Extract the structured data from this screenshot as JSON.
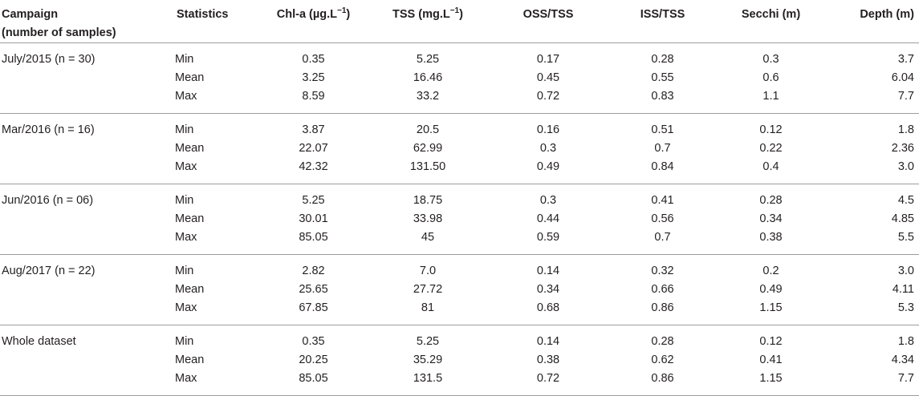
{
  "header": {
    "campaign_line1": "Campaign",
    "campaign_line2": "(number of samples)",
    "statistics": "Statistics",
    "chla": "Chl-a (µg.L",
    "chla_sup": "−1",
    "chla_close": ")",
    "tss": "TSS (mg.L",
    "tss_sup": "−1",
    "tss_close": ")",
    "oss": "OSS/TSS",
    "iss": "ISS/TSS",
    "secchi": "Secchi (m)",
    "depth": "Depth (m)"
  },
  "groups": [
    {
      "campaign": "July/2015 (n = 30)",
      "rows": [
        {
          "stat": "Min",
          "chla": "0.35",
          "tss": "5.25",
          "oss": "0.17",
          "iss": "0.28",
          "secchi": "0.3",
          "depth": "3.7"
        },
        {
          "stat": "Mean",
          "chla": "3.25",
          "tss": "16.46",
          "oss": "0.45",
          "iss": "0.55",
          "secchi": "0.6",
          "depth": "6.04"
        },
        {
          "stat": "Max",
          "chla": "8.59",
          "tss": "33.2",
          "oss": "0.72",
          "iss": "0.83",
          "secchi": "1.1",
          "depth": "7.7"
        }
      ]
    },
    {
      "campaign": "Mar/2016 (n = 16)",
      "rows": [
        {
          "stat": "Min",
          "chla": "3.87",
          "tss": "20.5",
          "oss": "0.16",
          "iss": "0.51",
          "secchi": "0.12",
          "depth": "1.8"
        },
        {
          "stat": "Mean",
          "chla": "22.07",
          "tss": "62.99",
          "oss": "0.3",
          "iss": "0.7",
          "secchi": "0.22",
          "depth": "2.36"
        },
        {
          "stat": "Max",
          "chla": "42.32",
          "tss": "131.50",
          "oss": "0.49",
          "iss": "0.84",
          "secchi": "0.4",
          "depth": "3.0"
        }
      ]
    },
    {
      "campaign": "Jun/2016 (n = 06)",
      "rows": [
        {
          "stat": "Min",
          "chla": "5.25",
          "tss": "18.75",
          "oss": "0.3",
          "iss": "0.41",
          "secchi": "0.28",
          "depth": "4.5"
        },
        {
          "stat": "Mean",
          "chla": "30.01",
          "tss": "33.98",
          "oss": "0.44",
          "iss": "0.56",
          "secchi": "0.34",
          "depth": "4.85"
        },
        {
          "stat": "Max",
          "chla": "85.05",
          "tss": "45",
          "oss": "0.59",
          "iss": "0.7",
          "secchi": "0.38",
          "depth": "5.5"
        }
      ]
    },
    {
      "campaign": "Aug/2017 (n = 22)",
      "rows": [
        {
          "stat": "Min",
          "chla": "2.82",
          "tss": "7.0",
          "oss": "0.14",
          "iss": "0.32",
          "secchi": "0.2",
          "depth": "3.0"
        },
        {
          "stat": "Mean",
          "chla": "25.65",
          "tss": "27.72",
          "oss": "0.34",
          "iss": "0.66",
          "secchi": "0.49",
          "depth": "4.11"
        },
        {
          "stat": "Max",
          "chla": "67.85",
          "tss": "81",
          "oss": "0.68",
          "iss": "0.86",
          "secchi": "1.15",
          "depth": "5.3"
        }
      ]
    },
    {
      "campaign": "Whole dataset",
      "rows": [
        {
          "stat": "Min",
          "chla": "0.35",
          "tss": "5.25",
          "oss": "0.14",
          "iss": "0.28",
          "secchi": "0.12",
          "depth": "1.8"
        },
        {
          "stat": "Mean",
          "chla": "20.25",
          "tss": "35.29",
          "oss": "0.38",
          "iss": "0.62",
          "secchi": "0.41",
          "depth": "4.34"
        },
        {
          "stat": "Max",
          "chla": "85.05",
          "tss": "131.5",
          "oss": "0.72",
          "iss": "0.86",
          "secchi": "1.15",
          "depth": "7.7"
        }
      ]
    }
  ]
}
